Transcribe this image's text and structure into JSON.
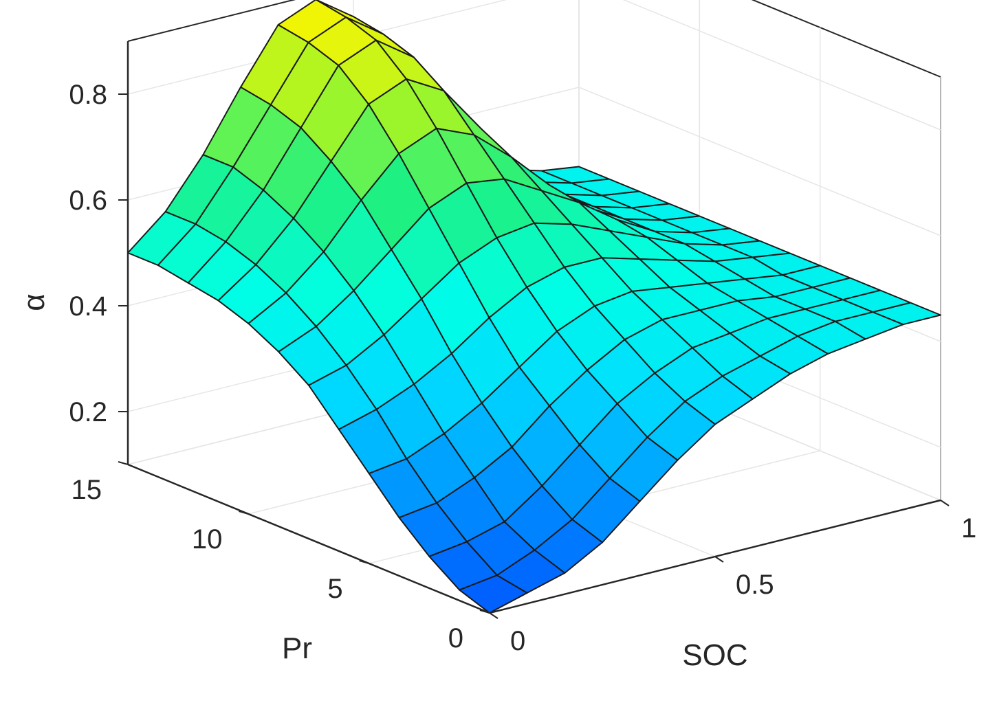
{
  "chart_data": {
    "type": "surface",
    "view": "3d-perspective",
    "colormap": "parula",
    "grid": true,
    "box": true,
    "xlabel": "SOC",
    "ylabel": "Pr",
    "zlabel": "α",
    "xlim": [
      0,
      1
    ],
    "ylim": [
      0,
      15
    ],
    "zlim": [
      0.1,
      0.9
    ],
    "xticks": [
      0,
      0.5,
      1
    ],
    "xtick_labels": [
      "0",
      "0.5",
      "1"
    ],
    "yticks": [
      0,
      5,
      10,
      15
    ],
    "ytick_labels": [
      "0",
      "5",
      "10",
      "15"
    ],
    "zticks": [
      0.2,
      0.4,
      0.6,
      0.8
    ],
    "ztick_labels": [
      "0.2",
      "0.4",
      "0.6",
      "0.8"
    ],
    "x": [
      0,
      0.0833,
      0.1667,
      0.25,
      0.3333,
      0.4167,
      0.5,
      0.5833,
      0.6667,
      0.75,
      0.8333,
      0.9167,
      1
    ],
    "y": [
      0,
      1.25,
      2.5,
      3.75,
      5,
      6.25,
      7.5,
      8.75,
      10,
      11.25,
      12.5,
      13.75,
      15
    ],
    "z": [
      [
        0.1,
        0.12,
        0.14,
        0.18,
        0.24,
        0.3,
        0.35,
        0.38,
        0.41,
        0.43,
        0.44,
        0.45,
        0.45
      ],
      [
        0.12,
        0.13,
        0.16,
        0.2,
        0.26,
        0.32,
        0.37,
        0.4,
        0.42,
        0.44,
        0.45,
        0.45,
        0.45
      ],
      [
        0.16,
        0.17,
        0.19,
        0.24,
        0.3,
        0.36,
        0.4,
        0.43,
        0.44,
        0.45,
        0.45,
        0.45,
        0.45
      ],
      [
        0.21,
        0.22,
        0.25,
        0.29,
        0.35,
        0.4,
        0.44,
        0.46,
        0.46,
        0.46,
        0.45,
        0.45,
        0.45
      ],
      [
        0.27,
        0.28,
        0.31,
        0.35,
        0.4,
        0.45,
        0.48,
        0.49,
        0.48,
        0.47,
        0.46,
        0.45,
        0.45
      ],
      [
        0.33,
        0.35,
        0.38,
        0.42,
        0.47,
        0.51,
        0.53,
        0.53,
        0.51,
        0.49,
        0.47,
        0.46,
        0.45
      ],
      [
        0.39,
        0.41,
        0.45,
        0.5,
        0.55,
        0.58,
        0.59,
        0.57,
        0.54,
        0.51,
        0.48,
        0.46,
        0.45
      ],
      [
        0.43,
        0.46,
        0.51,
        0.57,
        0.63,
        0.66,
        0.65,
        0.61,
        0.57,
        0.52,
        0.48,
        0.46,
        0.45
      ],
      [
        0.46,
        0.5,
        0.56,
        0.64,
        0.71,
        0.74,
        0.71,
        0.65,
        0.58,
        0.52,
        0.48,
        0.46,
        0.45
      ],
      [
        0.48,
        0.53,
        0.6,
        0.69,
        0.78,
        0.81,
        0.77,
        0.68,
        0.59,
        0.52,
        0.48,
        0.46,
        0.45
      ],
      [
        0.49,
        0.55,
        0.63,
        0.73,
        0.83,
        0.86,
        0.81,
        0.7,
        0.6,
        0.52,
        0.48,
        0.46,
        0.45
      ],
      [
        0.5,
        0.56,
        0.65,
        0.75,
        0.85,
        0.88,
        0.83,
        0.71,
        0.6,
        0.52,
        0.48,
        0.46,
        0.45
      ],
      [
        0.5,
        0.56,
        0.65,
        0.76,
        0.86,
        0.89,
        0.84,
        0.72,
        0.6,
        0.52,
        0.48,
        0.46,
        0.45
      ]
    ]
  }
}
